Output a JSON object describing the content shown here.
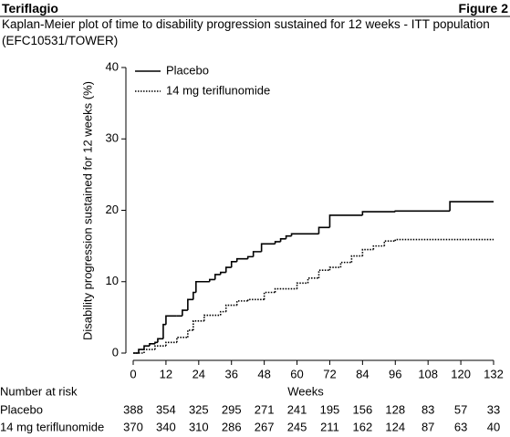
{
  "header": {
    "left": "Teriflagio",
    "right": "Figure 2"
  },
  "chart_data": {
    "type": "step",
    "title": "Kaplan-Meier plot of time to disability progression sustained for 12 weeks - ITT population (EFC10531/TOWER)",
    "x_label": "Weeks",
    "y_label": "Disability progression sustained for 12 weeks (%)",
    "xlim": [
      0,
      132
    ],
    "xticks": [
      0,
      12,
      24,
      36,
      48,
      60,
      72,
      84,
      96,
      108,
      120,
      132
    ],
    "ylim": [
      0,
      40
    ],
    "yticks": [
      0,
      10,
      20,
      30,
      40
    ],
    "legend": "top-left",
    "series": [
      {
        "name": "Placebo",
        "color": "#000000",
        "dash": "solid",
        "x": [
          0,
          2,
          4,
          6,
          8,
          9,
          11,
          12,
          16,
          18,
          20,
          22,
          23,
          28,
          30,
          32,
          34,
          36,
          38,
          42,
          44,
          47,
          52,
          54,
          56,
          58,
          68,
          72,
          84,
          96,
          116,
          132
        ],
        "values": [
          0,
          0.5,
          1,
          1.3,
          1.5,
          2,
          4,
          5.2,
          5.2,
          6,
          7.5,
          8.5,
          10,
          10.3,
          11,
          11.3,
          12,
          12.8,
          13.2,
          13.5,
          14.2,
          15.3,
          15.6,
          16,
          16.4,
          16.7,
          17.6,
          19.3,
          19.8,
          19.9,
          21.2,
          21.2
        ]
      },
      {
        "name": "14 mg teriflunomide",
        "color": "#000000",
        "dash": "dotted",
        "x": [
          0,
          4,
          8,
          12,
          16,
          20,
          22,
          26,
          32,
          34,
          38,
          42,
          48,
          52,
          60,
          64,
          68,
          72,
          76,
          80,
          84,
          88,
          92,
          96,
          132
        ],
        "values": [
          0,
          0.5,
          1,
          1.5,
          2.2,
          3.2,
          4.5,
          5.3,
          5.8,
          6.7,
          7.3,
          7.5,
          8.5,
          9,
          9.8,
          10.5,
          11.6,
          12,
          12.7,
          13.6,
          14.5,
          15,
          15.7,
          15.9,
          15.9
        ]
      }
    ]
  },
  "number_at_risk": {
    "title": "Number at risk",
    "rows": [
      {
        "label": "Placebo",
        "values": [
          388,
          354,
          325,
          295,
          271,
          241,
          195,
          156,
          128,
          83,
          57,
          33
        ]
      },
      {
        "label": "14 mg teriflunomide",
        "values": [
          370,
          340,
          310,
          286,
          267,
          245,
          211,
          162,
          124,
          87,
          63,
          40
        ]
      }
    ]
  }
}
